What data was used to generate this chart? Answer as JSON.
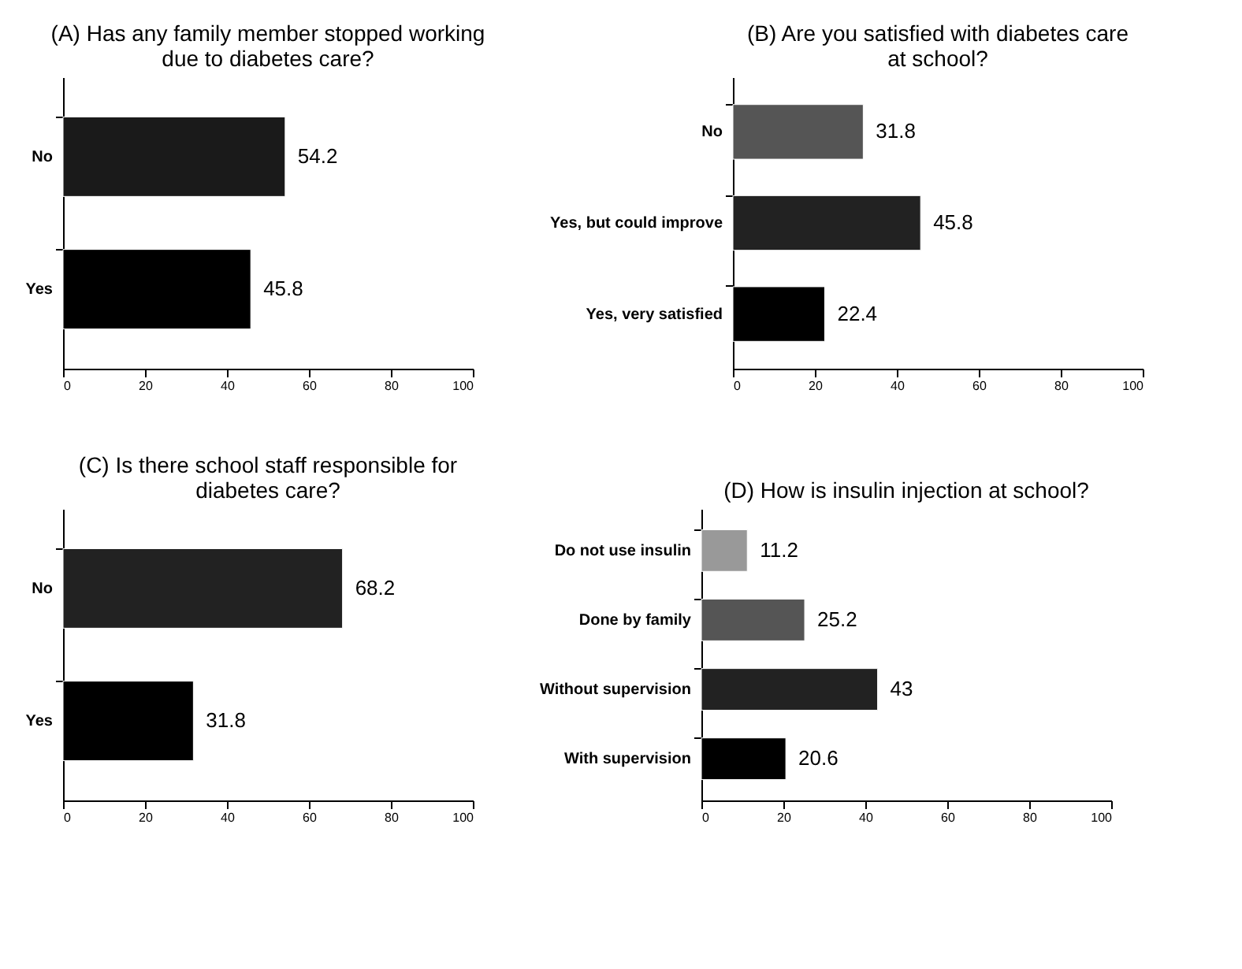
{
  "chart_data": [
    {
      "type": "bar",
      "orientation": "horizontal",
      "title": "(A) Has any family member stopped working due to diabetes care?",
      "categories": [
        "No",
        "Yes"
      ],
      "values": [
        54.2,
        45.8
      ],
      "colors": [
        "#1a1a1a",
        "#000000"
      ],
      "xlim": [
        0,
        100
      ],
      "xticks": [
        0,
        20,
        40,
        60,
        80,
        100
      ],
      "data_labels": true,
      "grid": false
    },
    {
      "type": "bar",
      "orientation": "horizontal",
      "title": "(B) Are you satisfied with diabetes care at school?",
      "categories": [
        "No",
        "Yes, but could improve",
        "Yes, very satisfied"
      ],
      "values": [
        31.8,
        45.8,
        22.4
      ],
      "colors": [
        "#555555",
        "#222222",
        "#000000"
      ],
      "xlim": [
        0,
        100
      ],
      "xticks": [
        0,
        20,
        40,
        60,
        80,
        100
      ],
      "data_labels": true,
      "grid": false
    },
    {
      "type": "bar",
      "orientation": "horizontal",
      "title": "(C) Is there school staff responsible for diabetes care?",
      "categories": [
        "No",
        "Yes"
      ],
      "values": [
        68.2,
        31.8
      ],
      "colors": [
        "#222222",
        "#000000"
      ],
      "xlim": [
        0,
        100
      ],
      "xticks": [
        0,
        20,
        40,
        60,
        80,
        100
      ],
      "data_labels": true,
      "grid": false
    },
    {
      "type": "bar",
      "orientation": "horizontal",
      "title": "(D) How is insulin injection at school?",
      "categories": [
        "Do not use insulin",
        "Done by family",
        "Without supervision",
        "With supervision"
      ],
      "values": [
        11.2,
        25.2,
        43,
        20.6
      ],
      "colors": [
        "#999999",
        "#555555",
        "#222222",
        "#000000"
      ],
      "xlim": [
        0,
        100
      ],
      "xticks": [
        0,
        20,
        40,
        60,
        80,
        100
      ],
      "data_labels": true,
      "grid": false
    }
  ]
}
